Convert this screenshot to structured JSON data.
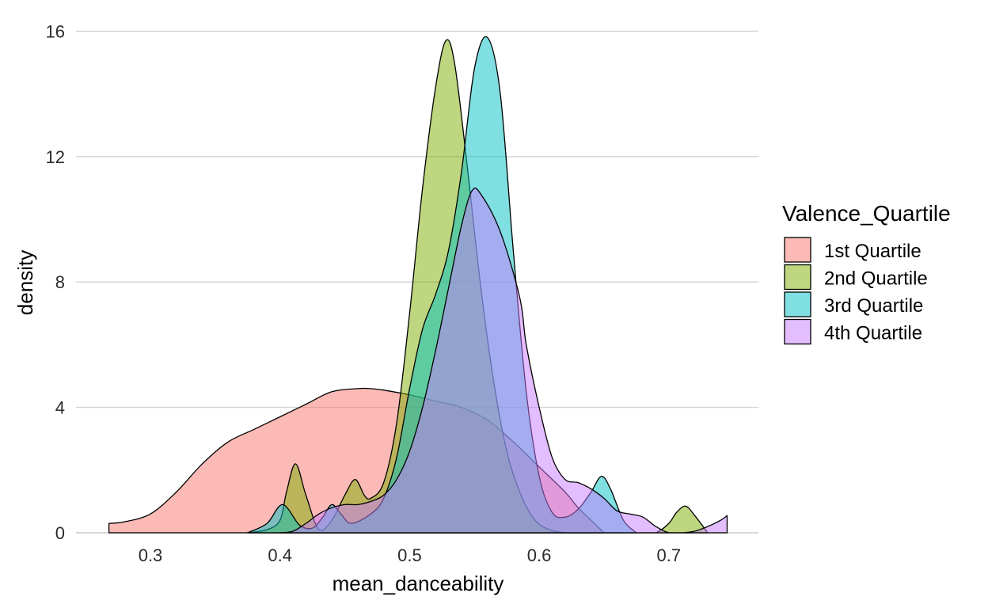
{
  "chart_data": {
    "type": "area",
    "subtype": "density",
    "title": "",
    "xlabel": "mean_danceability",
    "ylabel": "density",
    "xlim": [
      0.27,
      0.745
    ],
    "ylim": [
      0,
      16
    ],
    "x_ticks": [
      0.3,
      0.4,
      0.5,
      0.6,
      0.7
    ],
    "x_tick_labels": [
      "0.3",
      "0.4",
      "0.5",
      "0.6",
      "0.7"
    ],
    "y_ticks": [
      0,
      4,
      8,
      12,
      16
    ],
    "y_tick_labels": [
      "0",
      "4",
      "8",
      "12",
      "16"
    ],
    "grid": "horizontal",
    "legend": {
      "title": "Valence_Quartile",
      "position": "right"
    },
    "series": [
      {
        "name": "1st Quartile",
        "color": "#F8766D",
        "x": [
          0.268,
          0.28,
          0.3,
          0.32,
          0.34,
          0.36,
          0.38,
          0.4,
          0.42,
          0.44,
          0.46,
          0.47,
          0.48,
          0.5,
          0.52,
          0.54,
          0.56,
          0.58,
          0.6,
          0.62,
          0.63,
          0.64,
          0.65
        ],
        "y": [
          0.3,
          0.35,
          0.6,
          1.3,
          2.2,
          2.9,
          3.3,
          3.7,
          4.1,
          4.5,
          4.6,
          4.6,
          4.55,
          4.4,
          4.2,
          4.0,
          3.6,
          2.9,
          2.1,
          1.3,
          0.8,
          0.4,
          0.0
        ]
      },
      {
        "name": "2nd Quartile",
        "color": "#7CAE00",
        "x": [
          0.375,
          0.39,
          0.4,
          0.405,
          0.412,
          0.42,
          0.43,
          0.44,
          0.45,
          0.458,
          0.465,
          0.47,
          0.48,
          0.49,
          0.5,
          0.51,
          0.52,
          0.528,
          0.535,
          0.545,
          0.555,
          0.565,
          0.575,
          0.585,
          0.595,
          0.605,
          0.62,
          0.64,
          0.66,
          0.68,
          0.69,
          0.7,
          0.706,
          0.713,
          0.72,
          0.73
        ],
        "y": [
          0.0,
          0.1,
          0.4,
          1.3,
          2.2,
          1.2,
          0.1,
          0.4,
          1.2,
          1.7,
          1.2,
          1.1,
          1.6,
          3.5,
          7.0,
          11.0,
          14.2,
          15.7,
          14.9,
          11.5,
          7.8,
          4.8,
          2.6,
          1.3,
          0.5,
          0.15,
          0.0,
          0.0,
          0.0,
          0.0,
          0.0,
          0.3,
          0.65,
          0.85,
          0.55,
          0.0
        ]
      },
      {
        "name": "3rd Quartile",
        "color": "#00BFC4",
        "x": [
          0.375,
          0.39,
          0.402,
          0.415,
          0.425,
          0.433,
          0.44,
          0.447,
          0.455,
          0.47,
          0.48,
          0.49,
          0.5,
          0.51,
          0.52,
          0.53,
          0.54,
          0.55,
          0.56,
          0.57,
          0.58,
          0.59,
          0.6,
          0.61,
          0.62,
          0.63,
          0.64,
          0.648,
          0.655,
          0.665,
          0.675
        ],
        "y": [
          0.0,
          0.3,
          0.9,
          0.25,
          0.15,
          0.5,
          0.9,
          0.6,
          0.3,
          0.6,
          1.1,
          2.4,
          4.6,
          6.5,
          7.6,
          9.0,
          11.5,
          14.8,
          15.8,
          14.0,
          9.0,
          4.5,
          1.8,
          0.65,
          0.5,
          0.75,
          1.3,
          1.8,
          1.4,
          0.4,
          0.0
        ]
      },
      {
        "name": "4th Quartile",
        "color": "#C77CFF",
        "x": [
          0.4,
          0.41,
          0.42,
          0.43,
          0.44,
          0.45,
          0.46,
          0.47,
          0.48,
          0.49,
          0.5,
          0.51,
          0.52,
          0.53,
          0.54,
          0.548,
          0.555,
          0.57,
          0.585,
          0.59,
          0.6,
          0.61,
          0.62,
          0.63,
          0.64,
          0.65,
          0.66,
          0.67,
          0.68,
          0.69,
          0.7,
          0.71,
          0.72,
          0.73,
          0.74,
          0.745
        ],
        "y": [
          0.0,
          0.05,
          0.3,
          0.6,
          0.8,
          0.9,
          0.9,
          1.0,
          1.2,
          1.7,
          2.6,
          4.0,
          5.8,
          7.8,
          9.8,
          10.9,
          10.8,
          9.6,
          7.5,
          6.0,
          4.0,
          2.4,
          1.7,
          1.6,
          1.4,
          1.1,
          0.7,
          0.6,
          0.5,
          0.2,
          0.0,
          0.0,
          0.05,
          0.2,
          0.4,
          0.55
        ]
      }
    ]
  }
}
